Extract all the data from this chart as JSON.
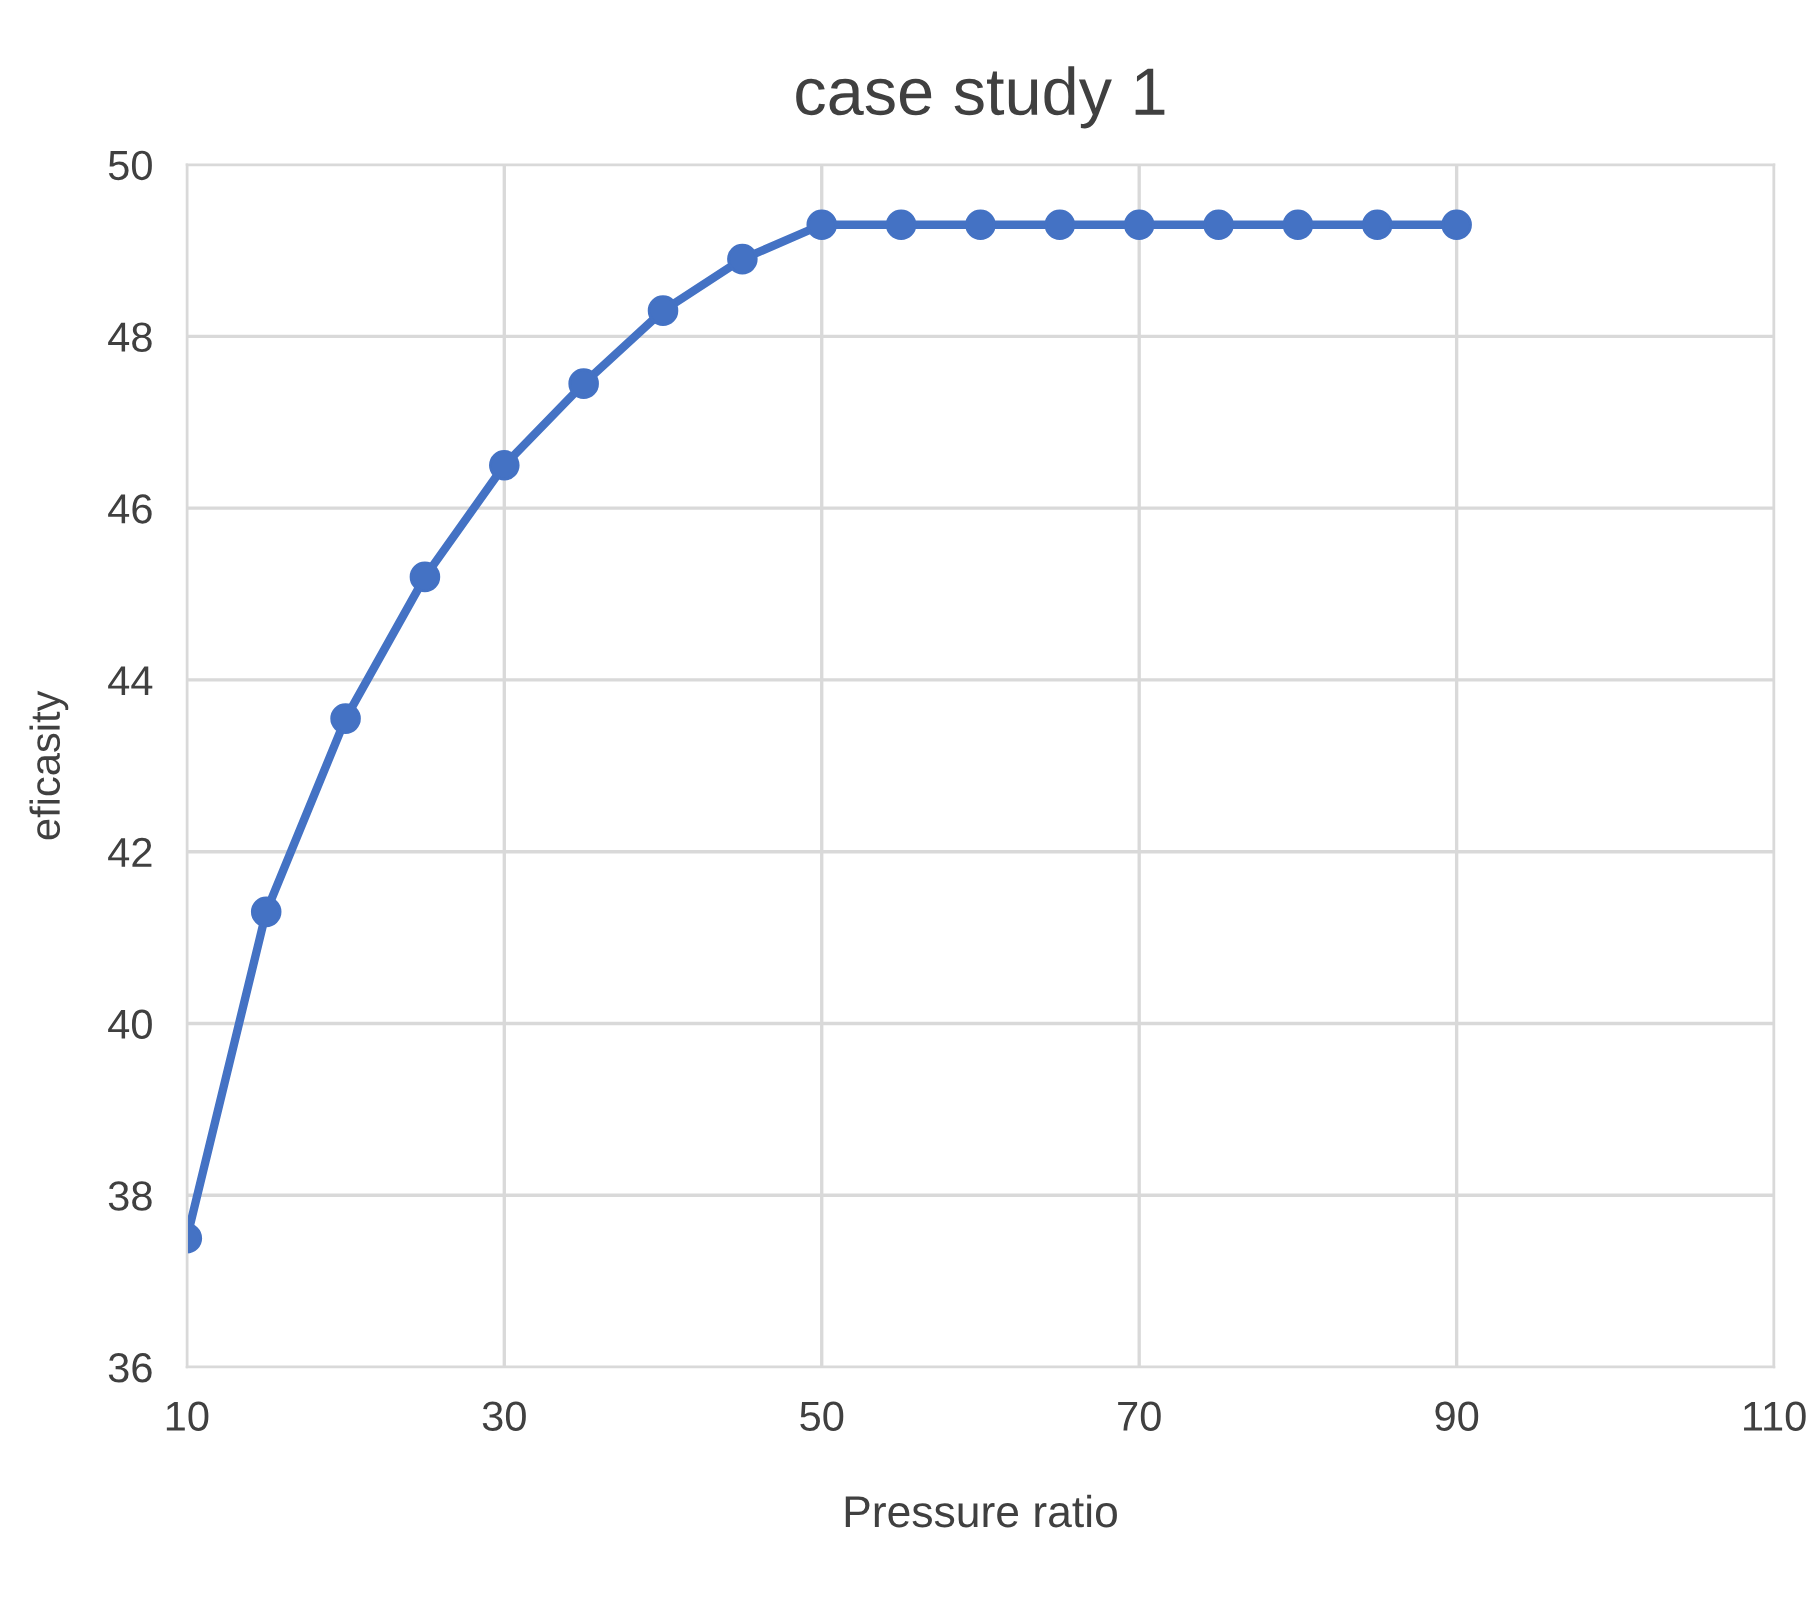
{
  "chart_data": {
    "type": "line",
    "title": "case study 1",
    "xlabel": "Pressure ratio",
    "ylabel": "eficasity",
    "x": [
      10,
      15,
      20,
      25,
      30,
      35,
      40,
      45,
      50,
      55,
      60,
      65,
      70,
      75,
      80,
      85,
      90
    ],
    "series": [
      {
        "color": "#4472c4",
        "values": [
          37.5,
          41.3,
          43.55,
          45.2,
          46.5,
          47.45,
          48.3,
          48.9,
          49.3,
          49.3,
          49.3,
          49.3,
          49.3,
          49.3,
          49.3,
          49.3,
          49.3
        ]
      }
    ],
    "xlim": [
      10,
      110
    ],
    "xticks": [
      10,
      30,
      50,
      70,
      90,
      110
    ],
    "ylim": [
      36,
      50
    ],
    "yticks": [
      36,
      38,
      40,
      42,
      44,
      46,
      48,
      50
    ],
    "grid": true,
    "marker": "circle",
    "line_style": "solid",
    "legend": false
  }
}
